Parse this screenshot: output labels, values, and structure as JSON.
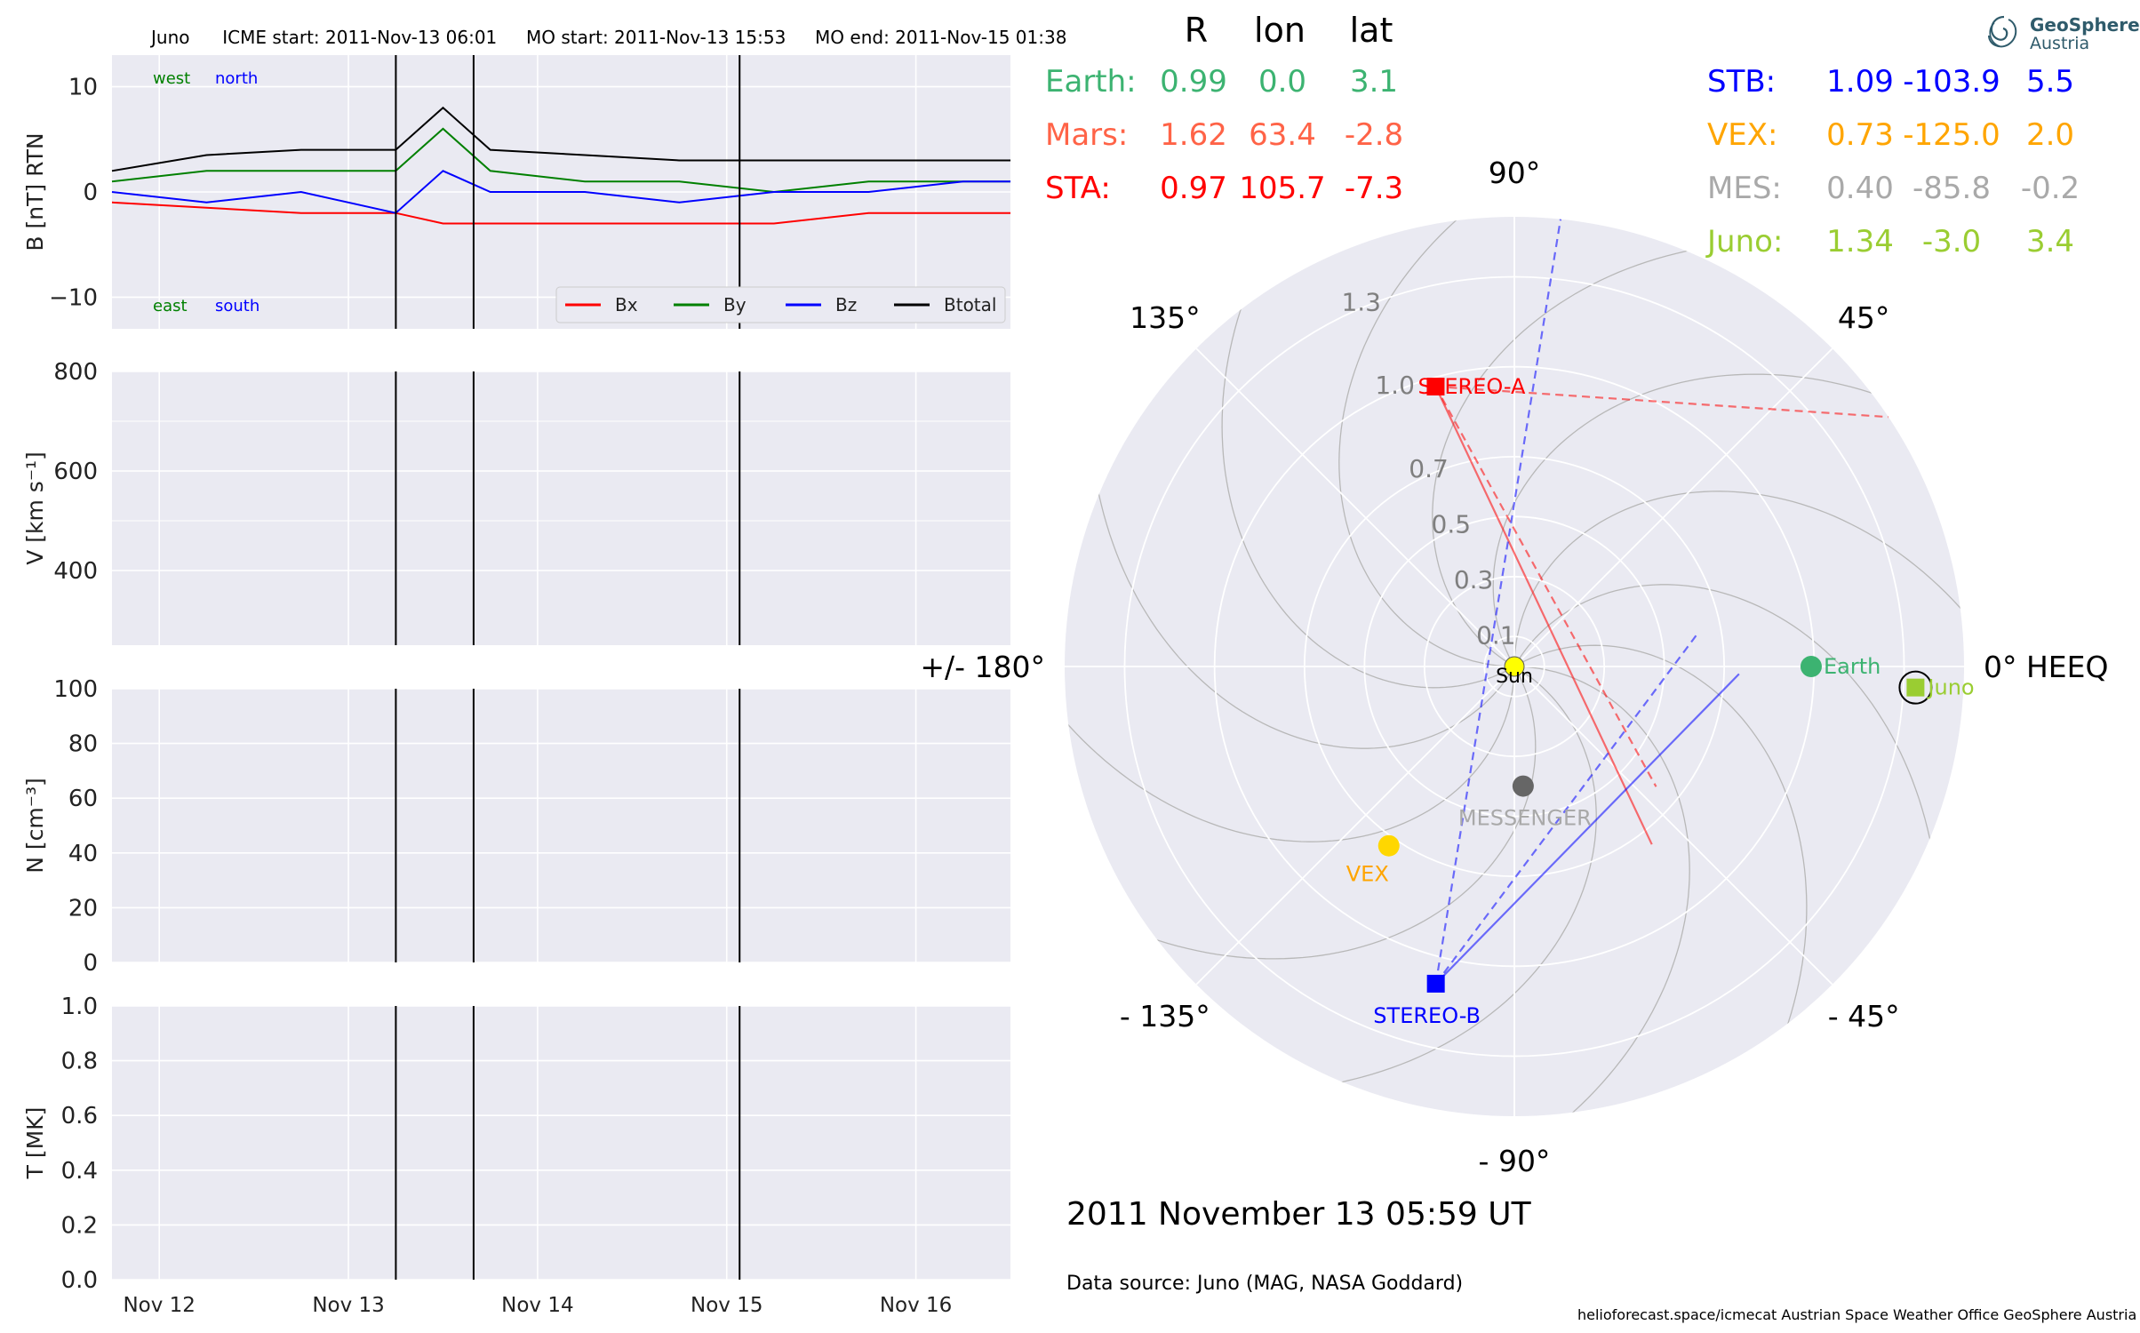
{
  "header": {
    "spacecraft": "Juno",
    "icme_start": "ICME start: 2011-Nov-13 06:01",
    "mo_start": "MO start: 2011-Nov-13 15:53",
    "mo_end": "MO end: 2011-Nov-15 01:38"
  },
  "logo": {
    "line1": "GeoSphere",
    "line2": "Austria"
  },
  "table": {
    "headers": [
      "R",
      "lon",
      "lat"
    ],
    "left": [
      {
        "name": "Earth:",
        "r": "0.99",
        "lon": "0.0",
        "lat": "3.1",
        "color": "#3cb371"
      },
      {
        "name": "Mars:",
        "r": "1.62",
        "lon": "63.4",
        "lat": "-2.8",
        "color": "#ff6347"
      },
      {
        "name": "STA:",
        "r": "0.97",
        "lon": "105.7",
        "lat": "-7.3",
        "color": "#ff0000"
      }
    ],
    "right": [
      {
        "name": "STB:",
        "r": "1.09",
        "lon": "-103.9",
        "lat": "5.5",
        "color": "#0000ff"
      },
      {
        "name": "VEX:",
        "r": "0.73",
        "lon": "-125.0",
        "lat": "2.0",
        "color": "#ffa500"
      },
      {
        "name": "MES:",
        "r": "0.40",
        "lon": "-85.8",
        "lat": "-0.2",
        "color": "#a9a9a9"
      },
      {
        "name": "Juno:",
        "r": "1.34",
        "lon": "-3.0",
        "lat": "3.4",
        "color": "#9acd32"
      }
    ]
  },
  "polar": {
    "angle_labels": [
      "90°",
      "45°",
      "0° HEEQ",
      "- 45°",
      "- 90°",
      "- 135°",
      "+/- 180°",
      "135°"
    ],
    "radial_labels": [
      "0.1",
      "0.3",
      "0.5",
      "0.7",
      "1.0",
      "1.3"
    ],
    "objects": [
      {
        "name": "Sun",
        "r": 0.0,
        "lon": 0.0,
        "color": "#ffff00",
        "shape": "circle"
      },
      {
        "name": "Earth",
        "r": 0.99,
        "lon": 0.0,
        "color": "#3cb371",
        "shape": "circle"
      },
      {
        "name": "Juno",
        "r": 1.34,
        "lon": -3.0,
        "color": "#9acd32",
        "shape": "square"
      },
      {
        "name": "STEREO-A",
        "r": 0.97,
        "lon": 105.7,
        "color": "#ff0000",
        "shape": "square"
      },
      {
        "name": "STEREO-B",
        "r": 1.09,
        "lon": -103.9,
        "color": "#0000ff",
        "shape": "square"
      },
      {
        "name": "MESSENGER",
        "r": 0.4,
        "lon": -85.8,
        "color": "#666666",
        "label_color": "#a9a9a9",
        "shape": "circle"
      },
      {
        "name": "VEX",
        "r": 0.73,
        "lon": -125.0,
        "color": "#ffd700",
        "label_color": "#ffa500",
        "shape": "circle"
      }
    ]
  },
  "datetime": "2011 November 13  05:59 UT",
  "data_source": "Data source: Juno (MAG, NASA Goddard)",
  "footer": "helioforecast.space/icmecat   Austrian Space Weather Office   GeoSphere Austria",
  "chart_data": [
    {
      "type": "line",
      "ylabel": "B [nT] RTN",
      "ylim": [
        -13,
        13
      ],
      "yticks": [
        "10",
        "0",
        "−10"
      ],
      "xlim": [
        "2011-11-11T18:00",
        "2011-11-16T12:00"
      ],
      "xticks": [
        "Nov 12",
        "Nov 13",
        "Nov 14",
        "Nov 15",
        "Nov 16"
      ],
      "vlines": [
        "2011-11-13T06:01",
        "2011-11-13T15:53",
        "2011-11-15T01:38"
      ],
      "annotations": {
        "west": "west",
        "north": "north",
        "east": "east",
        "south": "south"
      },
      "legend_position": "lower-right",
      "series": [
        {
          "name": "Bx",
          "color": "#ff0000",
          "x": [
            "11-11 18:00",
            "11-12 06:00",
            "11-12 18:00",
            "11-13 06:00",
            "11-13 12:00",
            "11-13 18:00",
            "11-14 06:00",
            "11-14 18:00",
            "11-15 06:00",
            "11-15 18:00",
            "11-16 06:00",
            "11-16 12:00"
          ],
          "values": [
            -1,
            -1.5,
            -2,
            -2,
            -3,
            -3,
            -3,
            -3,
            -3,
            -2,
            -2,
            -2
          ]
        },
        {
          "name": "By",
          "color": "#008000",
          "x": [
            "11-11 18:00",
            "11-12 06:00",
            "11-12 18:00",
            "11-13 06:00",
            "11-13 12:00",
            "11-13 18:00",
            "11-14 06:00",
            "11-14 18:00",
            "11-15 06:00",
            "11-15 18:00",
            "11-16 06:00",
            "11-16 12:00"
          ],
          "values": [
            1,
            2,
            2,
            2,
            6,
            2,
            1,
            1,
            0,
            1,
            1,
            1
          ]
        },
        {
          "name": "Bz",
          "color": "#0000ff",
          "x": [
            "11-11 18:00",
            "11-12 06:00",
            "11-12 18:00",
            "11-13 06:00",
            "11-13 12:00",
            "11-13 18:00",
            "11-14 06:00",
            "11-14 18:00",
            "11-15 06:00",
            "11-15 18:00",
            "11-16 06:00",
            "11-16 12:00"
          ],
          "values": [
            0,
            -1,
            0,
            -2,
            2,
            0,
            0,
            -1,
            0,
            0,
            1,
            1
          ]
        },
        {
          "name": "Btotal",
          "color": "#000000",
          "x": [
            "11-11 18:00",
            "11-12 06:00",
            "11-12 18:00",
            "11-13 06:00",
            "11-13 12:00",
            "11-13 18:00",
            "11-14 06:00",
            "11-14 18:00",
            "11-15 06:00",
            "11-15 18:00",
            "11-16 06:00",
            "11-16 12:00"
          ],
          "values": [
            2,
            3.5,
            4,
            4,
            8,
            4,
            3.5,
            3,
            3,
            3,
            3,
            3
          ]
        }
      ]
    },
    {
      "type": "line",
      "ylabel": "V [km s⁻¹]",
      "ylim": [
        250,
        800
      ],
      "yticks": [
        "800",
        "600",
        "400"
      ],
      "series": []
    },
    {
      "type": "line",
      "ylabel": "N [cm⁻³]",
      "ylim": [
        0,
        100
      ],
      "yticks": [
        "100",
        "80",
        "60",
        "40",
        "20",
        "0"
      ],
      "series": []
    },
    {
      "type": "line",
      "ylabel": "T [MK]",
      "ylim": [
        0,
        1.0
      ],
      "yticks": [
        "1.0",
        "0.8",
        "0.6",
        "0.4",
        "0.2",
        "0.0"
      ],
      "series": []
    }
  ]
}
